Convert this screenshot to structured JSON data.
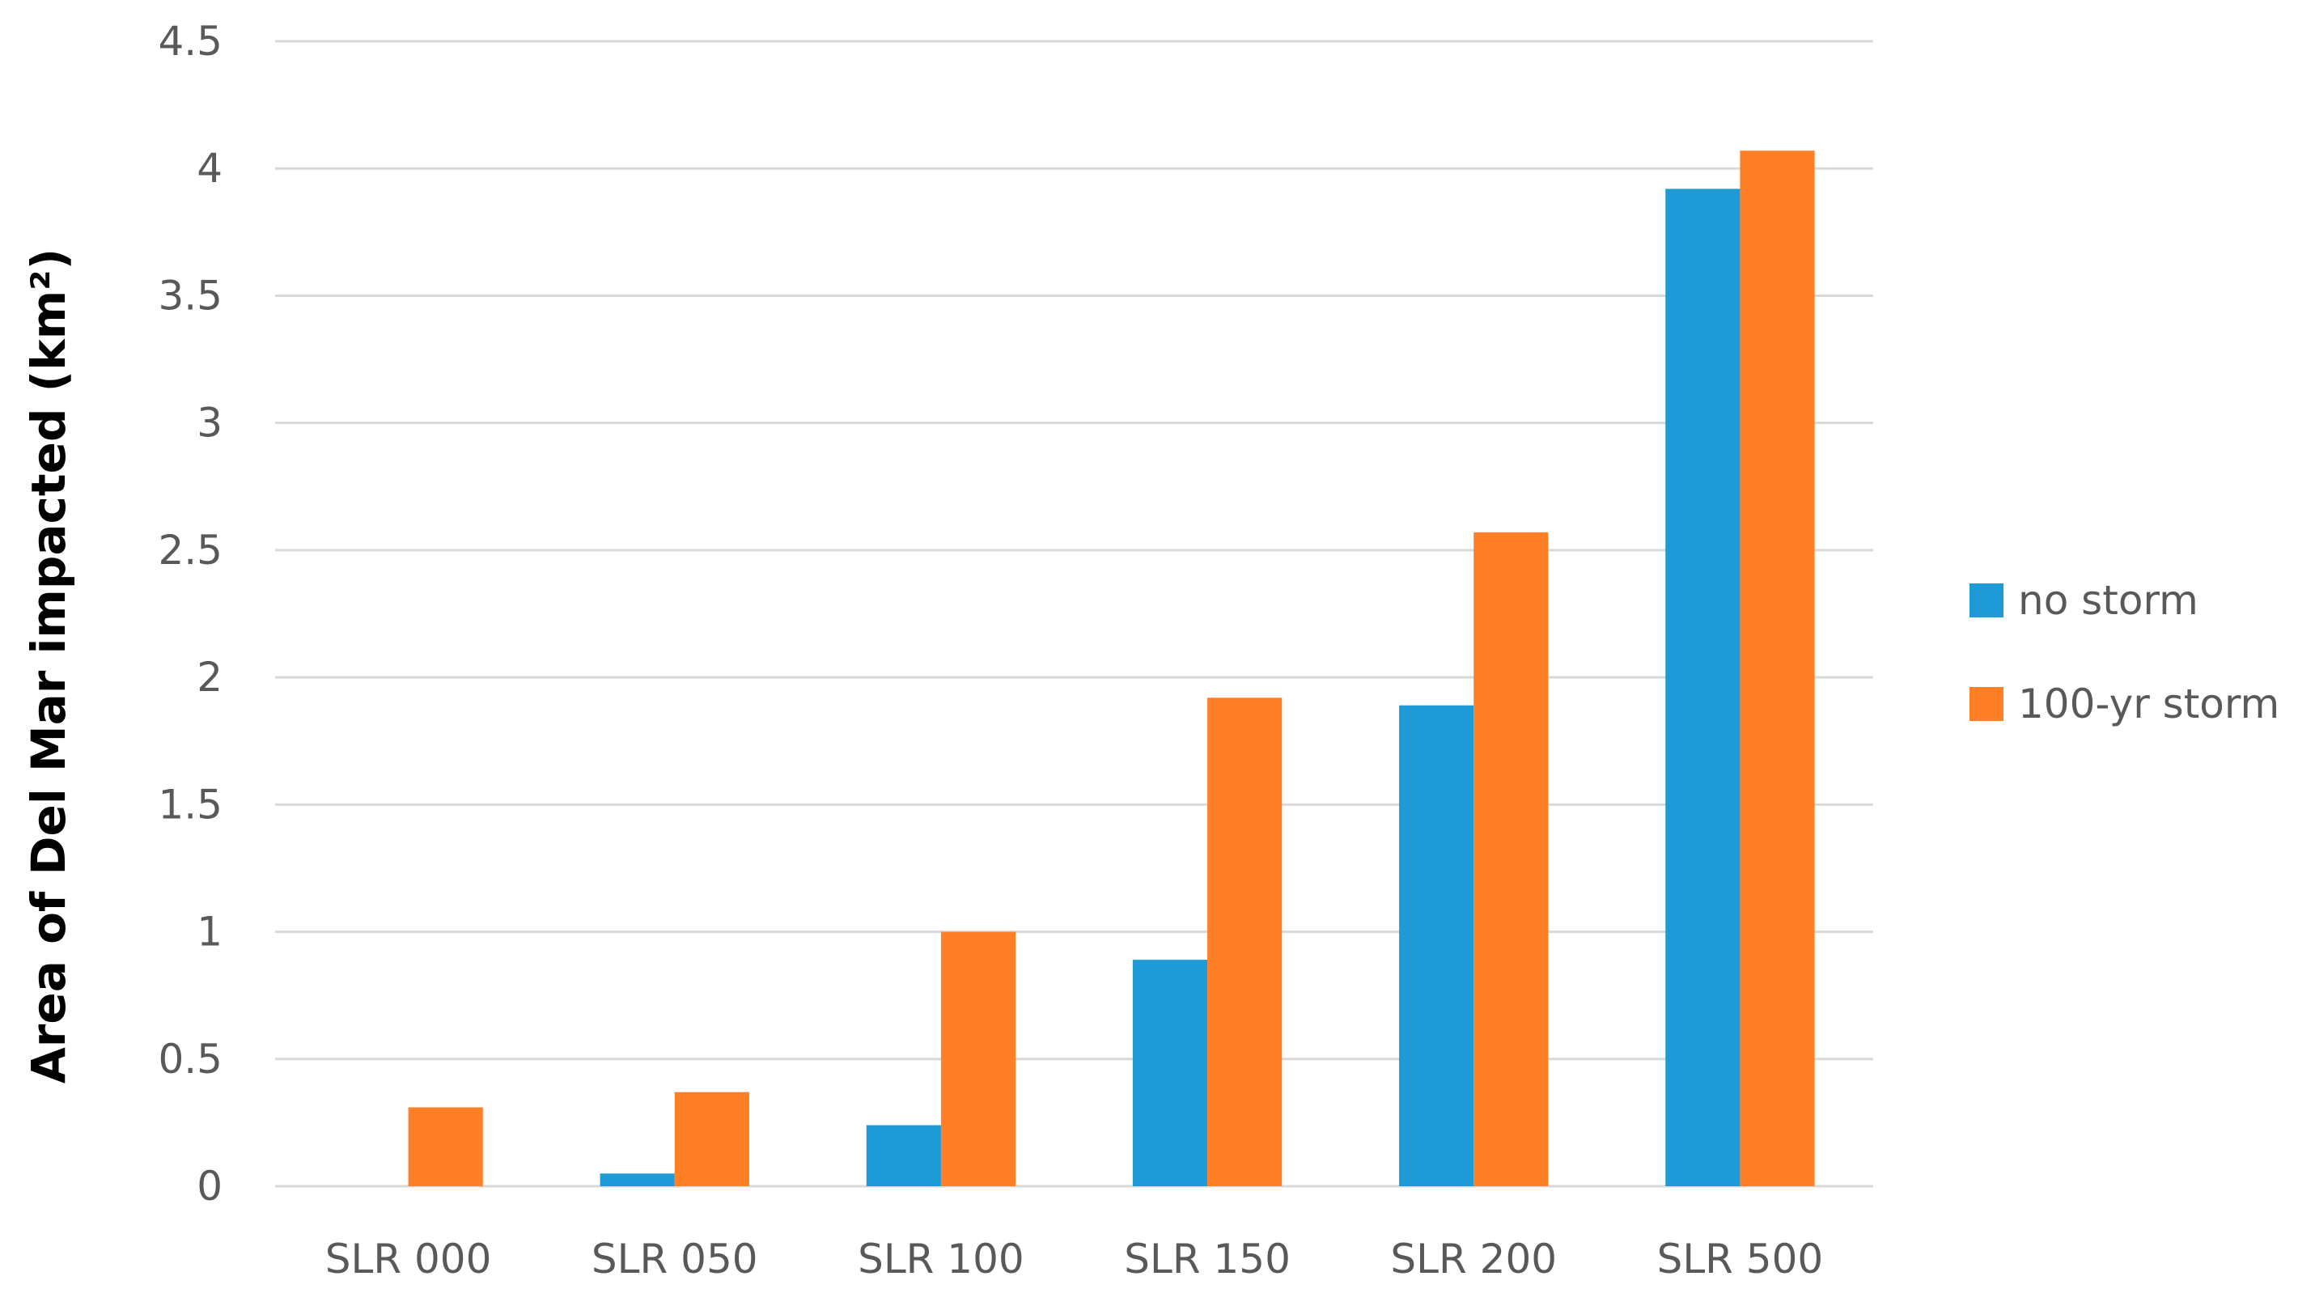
{
  "chart_data": {
    "type": "bar",
    "title": "",
    "xlabel": "",
    "ylabel": "Area of Del Mar impacted (km²)",
    "ylim": [
      0,
      4.5
    ],
    "yticks": [
      "0",
      "0.5",
      "1",
      "1.5",
      "2",
      "2.5",
      "3",
      "3.5",
      "4",
      "4.5"
    ],
    "grid": true,
    "legend_position": "right",
    "categories": [
      "SLR 000",
      "SLR 050",
      "SLR 100",
      "SLR 150",
      "SLR 200",
      "SLR 500"
    ],
    "series": [
      {
        "name": "no storm",
        "color": "#1E9BD7",
        "values": [
          0,
          0.05,
          0.24,
          0.89,
          1.89,
          3.92
        ]
      },
      {
        "name": "100-yr storm",
        "color": "#FF7F27",
        "values": [
          0.31,
          0.37,
          1.0,
          1.92,
          2.57,
          4.07
        ]
      }
    ]
  }
}
